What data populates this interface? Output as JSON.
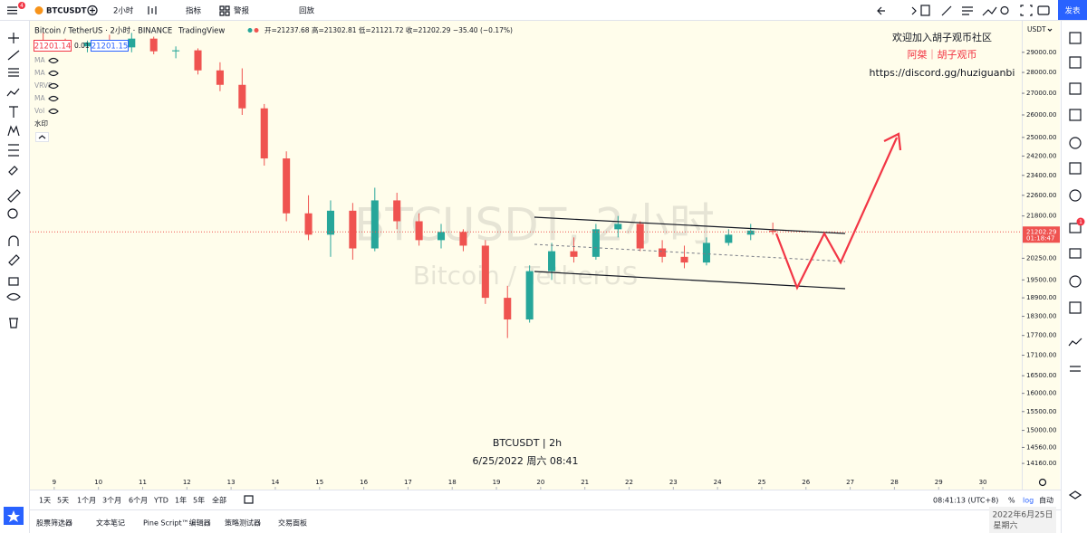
{
  "toolbar": {
    "badge": "4",
    "symbol": "BTCUSDT",
    "interval": "2小时",
    "buttons": [
      "指标",
      "警报",
      "回放"
    ],
    "publish": "发表"
  },
  "legend": {
    "title": "Bitcoin / TetherUS · 2小时 · BINANCE",
    "source": "TradingView",
    "ohlc": "开=21237.68 高=21302.81 低=21121.72 收=21202.29 −35.40 (−0.17%)",
    "bid": "21201.14",
    "spread": "0.01",
    "ask": "21201.15",
    "indicators": [
      "MA",
      "MA",
      "VRVP",
      "MA",
      "Vol",
      "水印"
    ]
  },
  "chart_data": {
    "type": "candlestick",
    "watermark": "BTCUSDT, 2小时",
    "watermark_sub": "Bitcoin / TetherUS",
    "currency": "USDT",
    "log_scale": true,
    "grid": false,
    "up_color": "#26a69a",
    "down_color": "#ef5350",
    "x": [
      8.75,
      9.25,
      9.75,
      10.25,
      10.75,
      11.25,
      11.75,
      12.25,
      12.75,
      13.25,
      13.75,
      14.25,
      14.75,
      15.25,
      15.75,
      16.25,
      16.75,
      17.25,
      17.75,
      18.25,
      18.75,
      19.25,
      19.75,
      20.25,
      20.75,
      21.25,
      21.75,
      22.25,
      22.75,
      23.25,
      23.75,
      24.25,
      24.75,
      25.25
    ],
    "open": [
      29600,
      29400,
      29300,
      29500,
      29250,
      29700,
      29050,
      29100,
      28100,
      27400,
      26300,
      24100,
      21900,
      21100,
      22000,
      20600,
      22400,
      21600,
      20900,
      21200,
      20700,
      18900,
      18200,
      19800,
      20500,
      20300,
      21300,
      21500,
      20600,
      20300,
      20100,
      20800,
      21100,
      21250
    ],
    "high": [
      30000,
      29700,
      29600,
      29900,
      30000,
      29800,
      29300,
      29200,
      28500,
      28200,
      26500,
      24400,
      22600,
      22400,
      22300,
      22900,
      22700,
      21900,
      21500,
      21300,
      20900,
      19300,
      20000,
      20800,
      21000,
      21500,
      21800,
      21600,
      20900,
      20700,
      21000,
      21300,
      21500,
      21550
    ],
    "low": [
      29300,
      29100,
      29000,
      29200,
      29000,
      28900,
      28700,
      27900,
      27100,
      26000,
      23800,
      21600,
      20900,
      20300,
      20200,
      20500,
      21300,
      20700,
      20600,
      20500,
      18700,
      17620,
      18100,
      19500,
      20100,
      20200,
      21000,
      20500,
      20100,
      19900,
      20000,
      20700,
      20900,
      21100
    ],
    "close": [
      29400,
      29300,
      29500,
      29250,
      29700,
      29050,
      29100,
      28100,
      27400,
      26300,
      24100,
      21900,
      21100,
      22000,
      20600,
      22400,
      21600,
      20900,
      21200,
      20700,
      18900,
      18200,
      19800,
      20500,
      20300,
      21300,
      21500,
      20600,
      20300,
      20100,
      20800,
      21100,
      21250,
      21202.29
    ],
    "xlim": [
      8.45,
      30.88
    ],
    "xticks": [
      9,
      10,
      11,
      12,
      13,
      14,
      15,
      16,
      17,
      18,
      19,
      20,
      21,
      22,
      23,
      24,
      25,
      26,
      27,
      28,
      29,
      30
    ],
    "ylim": [
      13550,
      30300
    ],
    "yticks": [
      {
        "value": 29000,
        "label": "29000.00"
      },
      {
        "value": 28000,
        "label": "28000.00"
      },
      {
        "value": 27000,
        "label": "27000.00"
      },
      {
        "value": 26000,
        "label": "26000.00"
      },
      {
        "value": 25000,
        "label": "25000.00"
      },
      {
        "value": 24200,
        "label": "24200.00"
      },
      {
        "value": 23400,
        "label": "23400.00"
      },
      {
        "value": 22600,
        "label": "22600.00"
      },
      {
        "value": 21800,
        "label": "21800.00"
      },
      {
        "value": 20250,
        "label": "20250.00"
      },
      {
        "value": 19500,
        "label": "19500.00"
      },
      {
        "value": 18900,
        "label": "18900.00"
      },
      {
        "value": 18300,
        "label": "18300.00"
      },
      {
        "value": 17700,
        "label": "17700.00"
      },
      {
        "value": 17100,
        "label": "17100.00"
      },
      {
        "value": 16500,
        "label": "16500.00"
      },
      {
        "value": 16000,
        "label": "16000.00"
      },
      {
        "value": 15500,
        "label": "15500.00"
      },
      {
        "value": 15000,
        "label": "15000.00"
      },
      {
        "value": 14560,
        "label": "14560.00"
      },
      {
        "value": 14160,
        "label": "14160.00"
      }
    ],
    "last_price": 21202.29,
    "countdown": "01:18:47"
  },
  "annotations": {
    "community": "欢迎加入胡子观币社区",
    "author": "阿桀｜胡子观币",
    "link": "https://discord.gg/huziguanbi",
    "caption_symbol": "BTCUSDT | 2h",
    "caption_time": "6/25/2022 周六 08:41"
  },
  "bottom_bar": {
    "ranges": [
      "1天",
      "5天",
      "1个月",
      "3个月",
      "6个月",
      "YTD",
      "1年",
      "5年",
      "全部"
    ],
    "clock": "08:41:13 (UTC+8)",
    "percent": "%",
    "log": "log",
    "auto": "自动"
  },
  "tabs": [
    "股票筛选器",
    "文本笔记",
    "Pine Script™编辑器",
    "策略测试器",
    "交易面板"
  ],
  "right_badge": "1",
  "os_clock": {
    "date": "2022年6月25日",
    "weekday": "星期六"
  }
}
